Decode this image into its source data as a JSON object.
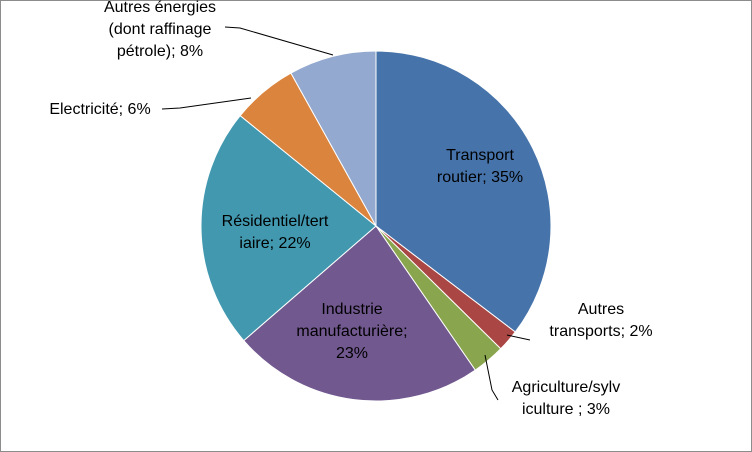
{
  "chart_data": {
    "type": "pie",
    "title": "",
    "start_angle_deg": 0,
    "direction": "clockwise",
    "legend": "none",
    "slices": [
      {
        "name": "Transport routier",
        "value": 35,
        "color": "#4673AA",
        "label_lines": [
          "Transport",
          "routier; 35%"
        ]
      },
      {
        "name": "Autres transports",
        "value": 2,
        "color": "#AA4643",
        "label_lines": [
          "Autres",
          "transports; 2%"
        ]
      },
      {
        "name": "Agriculture/sylviculture",
        "value": 3,
        "color": "#89A54E",
        "label_lines": [
          "Agriculture/sylv",
          "iculture ; 3%"
        ]
      },
      {
        "name": "Industrie manufacturière",
        "value": 23,
        "color": "#71588F",
        "label_lines": [
          "Industrie",
          "manufacturière;",
          "23%"
        ]
      },
      {
        "name": "Résidentiel/tertiaire",
        "value": 22,
        "color": "#4198AF",
        "label_lines": [
          "Résidentiel/tert",
          "iaire; 22%"
        ]
      },
      {
        "name": "Electricité",
        "value": 6,
        "color": "#DB843D",
        "label_lines": [
          "Electricité; 6%"
        ]
      },
      {
        "name": "Autres énergies (dont raffinage pétrole)",
        "value": 8,
        "color": "#93A9CF",
        "label_lines": [
          "Autres énergies",
          "(dont raffinage",
          "pétrole); 8%"
        ]
      }
    ]
  }
}
